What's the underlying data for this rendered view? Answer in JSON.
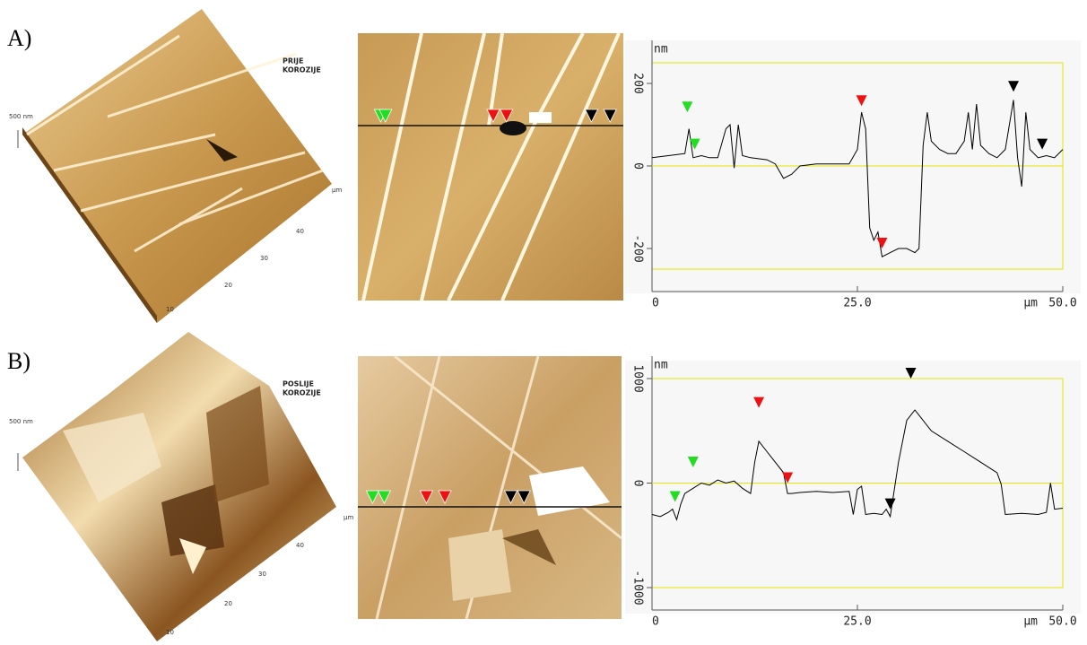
{
  "panels": [
    {
      "label": "A)",
      "afm_3d": {
        "caption": [
          "PRIJE",
          "KOROZIJE"
        ],
        "scale": "500 nm",
        "ticks": [
          "10",
          "20",
          "30",
          "40"
        ],
        "unit": "µm"
      }
    },
    {
      "label": "B)",
      "afm_3d": {
        "caption": [
          "POSLIJE",
          "KOROZIJE"
        ],
        "scale": "500 nm",
        "ticks": [
          "10",
          "20",
          "30",
          "40"
        ],
        "unit": "µm"
      }
    }
  ],
  "chart_data": [
    {
      "type": "line",
      "y_unit": "nm",
      "x_unit": "µm",
      "color": "#000000",
      "x": [
        0,
        2,
        4,
        4.5,
        5,
        6,
        7,
        8,
        9,
        9.5,
        10,
        10.5,
        11,
        12,
        14,
        15,
        16,
        17,
        18,
        20,
        22,
        24,
        25,
        25.5,
        26,
        26.5,
        27,
        27.5,
        28,
        29,
        30,
        31,
        32,
        32.5,
        33,
        33.5,
        34,
        35,
        36,
        37,
        38,
        38.5,
        39,
        39.5,
        40,
        41,
        42,
        43,
        44,
        44.5,
        45,
        45.5,
        46,
        47,
        48,
        49,
        50
      ],
      "values": [
        20,
        25,
        30,
        90,
        20,
        25,
        20,
        20,
        90,
        100,
        -5,
        100,
        25,
        20,
        15,
        5,
        -30,
        -20,
        0,
        5,
        5,
        5,
        40,
        130,
        90,
        -150,
        -180,
        -160,
        -220,
        -210,
        -200,
        -200,
        -210,
        -200,
        50,
        130,
        60,
        40,
        30,
        30,
        60,
        130,
        40,
        150,
        50,
        30,
        20,
        40,
        160,
        20,
        -50,
        130,
        40,
        20,
        25,
        20,
        40
      ],
      "xlim": [
        0,
        50
      ],
      "xticks": [
        0,
        {
          "value": 25,
          "label": "25.0"
        },
        {
          "value": 50,
          "label": "50.0"
        }
      ],
      "ylim": [
        -250,
        250
      ],
      "yticks": [
        -200,
        0,
        200
      ],
      "markers": [
        {
          "x": 4.3,
          "y": 130,
          "color": "#22dd22"
        },
        {
          "x": 5.2,
          "y": 40,
          "color": "#22dd22"
        },
        {
          "x": 25.5,
          "y": 145,
          "color": "#ee1111"
        },
        {
          "x": 28,
          "y": -200,
          "color": "#ee1111"
        },
        {
          "x": 44,
          "y": 180,
          "color": "#000000"
        },
        {
          "x": 47.5,
          "y": 40,
          "color": "#000000"
        }
      ]
    },
    {
      "type": "line",
      "y_unit": "nm",
      "x_unit": "µm",
      "color": "#000000",
      "x": [
        0,
        1,
        2,
        2.5,
        3,
        3.5,
        4,
        5,
        6,
        7,
        8,
        9,
        10,
        11,
        12,
        12.5,
        13,
        14,
        15,
        16,
        16.5,
        17,
        18,
        20,
        22,
        24,
        24.5,
        25,
        25.5,
        26,
        27,
        28,
        28.5,
        29,
        30,
        31,
        32,
        32.5,
        34,
        36,
        38,
        40,
        42,
        42.5,
        43,
        45,
        47,
        48,
        48.5,
        49,
        50
      ],
      "values": [
        -300,
        -320,
        -280,
        -250,
        -350,
        -200,
        -100,
        -50,
        0,
        -20,
        30,
        0,
        20,
        -50,
        -100,
        200,
        400,
        300,
        200,
        100,
        -100,
        -100,
        -90,
        -80,
        -90,
        -80,
        -300,
        -60,
        -30,
        -300,
        -290,
        -300,
        -250,
        -320,
        200,
        600,
        700,
        650,
        500,
        400,
        300,
        200,
        100,
        -10,
        -300,
        -290,
        -300,
        -280,
        0,
        -250,
        -240
      ],
      "xlim": [
        0,
        50
      ],
      "xticks": [
        0,
        {
          "value": 25,
          "label": "25.0"
        },
        {
          "value": 50,
          "label": "50.0"
        }
      ],
      "ylim": [
        -1000,
        1000
      ],
      "yticks": [
        -1000,
        0,
        1000
      ],
      "markers": [
        {
          "x": 2.8,
          "y": -180,
          "color": "#22dd22"
        },
        {
          "x": 5,
          "y": 150,
          "color": "#22dd22"
        },
        {
          "x": 13,
          "y": 720,
          "color": "#ee1111"
        },
        {
          "x": 16.5,
          "y": 0,
          "color": "#ee1111"
        },
        {
          "x": 29,
          "y": -250,
          "color": "#000000"
        },
        {
          "x": 31.5,
          "y": 1000,
          "color": "#000000"
        }
      ]
    }
  ]
}
